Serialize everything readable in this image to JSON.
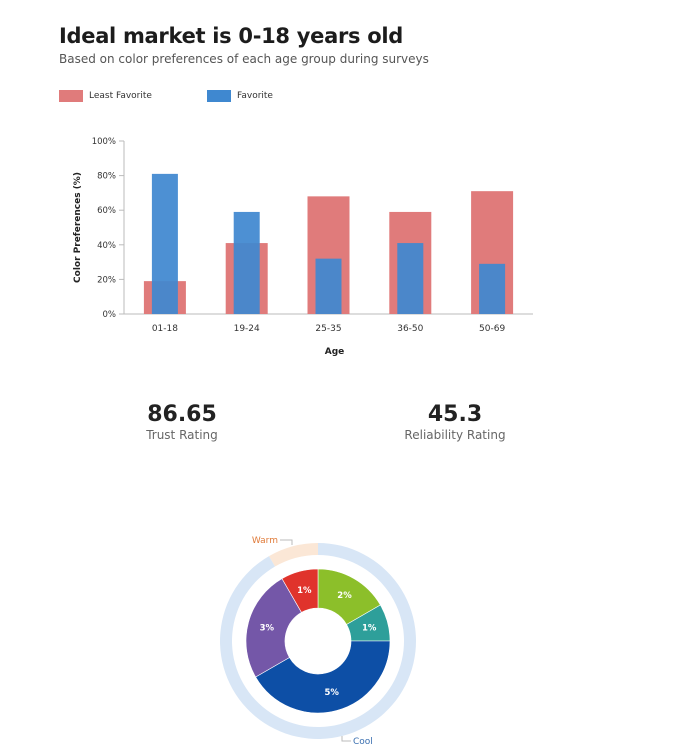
{
  "header": {
    "title": "Ideal market is 0-18 years old",
    "subtitle": "Based on color preferences of each age group during surveys"
  },
  "colors": {
    "least_favorite": "#e07b7b",
    "favorite": "#3f88d0",
    "warm_ring": "#fbe7d6",
    "cool_ring": "#d8e6f6",
    "warm_label": "#e07b3a",
    "cool_label": "#3a6fb0"
  },
  "chart_data": [
    {
      "type": "bar",
      "xlabel": "Age",
      "ylabel": "Color Preferences (%)",
      "ylim": [
        0,
        100
      ],
      "yticks": [
        "0%",
        "20%",
        "40%",
        "60%",
        "80%",
        "100%"
      ],
      "categories": [
        "01-18",
        "19-24",
        "25-35",
        "36-50",
        "50-69"
      ],
      "series": [
        {
          "name": "Least Favorite",
          "values": [
            19,
            41,
            68,
            59,
            71
          ]
        },
        {
          "name": "Favorite",
          "values": [
            81,
            59,
            32,
            41,
            29
          ]
        }
      ],
      "legend_position": "top-left",
      "grid": false
    },
    {
      "type": "pie",
      "variant": "nested-donut",
      "outer_ring": [
        {
          "name": "Warm",
          "value": 1
        },
        {
          "name": "Cool",
          "value": 11
        }
      ],
      "inner_ring": [
        {
          "label": "2%",
          "value": 2,
          "color": "#8cbf2a"
        },
        {
          "label": "1%",
          "value": 1,
          "color": "#2e9f9a"
        },
        {
          "label": "5%",
          "value": 5,
          "color": "#0d4fa6"
        },
        {
          "label": "3%",
          "value": 3,
          "color": "#7457a8"
        },
        {
          "label": "1%",
          "value": 1,
          "color": "#e0332c"
        }
      ]
    }
  ],
  "stats": [
    {
      "value": "86.65",
      "label": "Trust Rating"
    },
    {
      "value": "45.3",
      "label": "Reliability Rating"
    }
  ]
}
